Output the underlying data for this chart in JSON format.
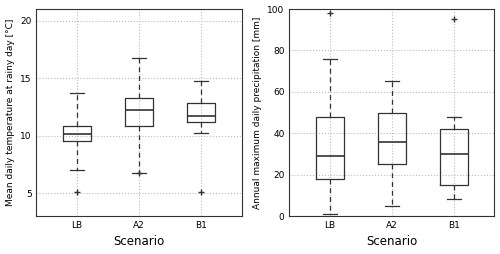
{
  "left": {
    "ylabel": "Mean daily temperature at rainy day [°C]",
    "xlabel": "Scenario",
    "categories": [
      "LB",
      "A2",
      "B1"
    ],
    "ylim": [
      3.0,
      21.0
    ],
    "yticks": [
      5,
      10,
      15,
      20
    ],
    "boxes": [
      {
        "med": 10.1,
        "q1": 9.5,
        "q3": 10.8,
        "whislo": 7.0,
        "whishi": 13.7,
        "fliers": [
          5.1
        ]
      },
      {
        "med": 12.2,
        "q1": 10.8,
        "q3": 13.3,
        "whislo": 6.7,
        "whishi": 16.7,
        "fliers": [
          6.7
        ]
      },
      {
        "med": 11.7,
        "q1": 11.2,
        "q3": 12.8,
        "whislo": 10.2,
        "whishi": 14.7,
        "fliers": [
          5.1
        ]
      }
    ]
  },
  "right": {
    "ylabel": "Annual maximum daily precipitation [mm]",
    "xlabel": "Scenario",
    "categories": [
      "LB",
      "A2",
      "B1"
    ],
    "ylim": [
      0,
      100
    ],
    "yticks": [
      0,
      20,
      40,
      60,
      80,
      100
    ],
    "boxes": [
      {
        "med": 29.0,
        "q1": 18.0,
        "q3": 48.0,
        "whislo": 1.0,
        "whishi": 76.0,
        "fliers": [
          98.0
        ]
      },
      {
        "med": 36.0,
        "q1": 25.0,
        "q3": 50.0,
        "whislo": 5.0,
        "whishi": 65.0,
        "fliers": []
      },
      {
        "med": 30.0,
        "q1": 15.0,
        "q3": 42.0,
        "whislo": 8.0,
        "whishi": 48.0,
        "fliers": [
          95.0
        ]
      }
    ]
  },
  "box_color": "#333333",
  "median_color": "#333333",
  "whisker_color": "#333333",
  "cap_color": "#333333",
  "flier_marker": "+",
  "flier_color": "#333333",
  "grid_color": "#bbbbbb",
  "grid_style": "dotted",
  "background_color": "#ffffff",
  "fontsize_label": 6.5,
  "fontsize_tick": 6.5,
  "fontsize_xlabel": 8.5
}
